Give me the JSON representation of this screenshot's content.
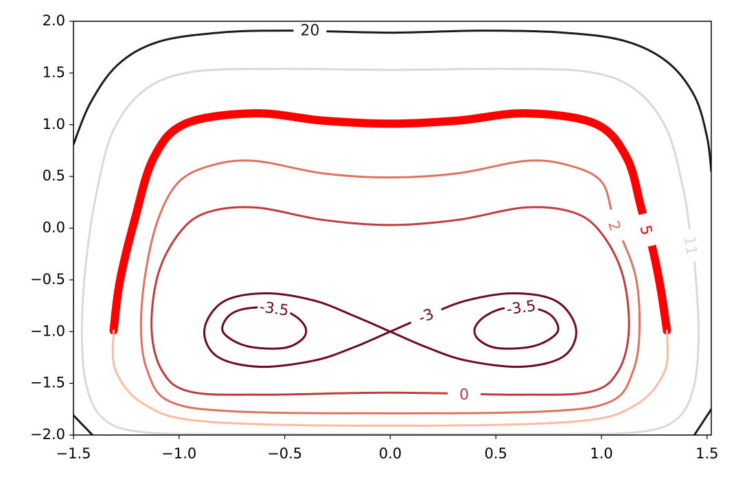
{
  "chart_data": {
    "type": "contour",
    "xlim": [
      -1.5,
      1.52
    ],
    "ylim": [
      -2,
      2
    ],
    "xticks": [
      {
        "value": -1.5,
        "label": "−1.5"
      },
      {
        "value": -1,
        "label": "−1.0"
      },
      {
        "value": -0.5,
        "label": "−0.5"
      },
      {
        "value": 0,
        "label": "0.0"
      },
      {
        "value": 0.5,
        "label": "0.5"
      },
      {
        "value": 1,
        "label": "1.0"
      },
      {
        "value": 1.5,
        "label": "1.5"
      }
    ],
    "yticks": [
      {
        "value": -2,
        "label": "−2.0"
      },
      {
        "value": -1.5,
        "label": "−1.5"
      },
      {
        "value": -1,
        "label": "−1.0"
      },
      {
        "value": -0.5,
        "label": "−0.5"
      },
      {
        "value": 0,
        "label": "0.0"
      },
      {
        "value": 0.5,
        "label": "0.5"
      },
      {
        "value": 1,
        "label": "1.0"
      },
      {
        "value": 1.5,
        "label": "1.5"
      },
      {
        "value": 2,
        "label": "2.0"
      }
    ],
    "contours": [
      {
        "level": 20,
        "color": "#1a1a1a",
        "paths": [
          {
            "closed": false,
            "x": [
              -1.5,
              -1.42,
              -1.29,
              -1.1,
              -0.81,
              -0.48,
              0,
              0.43,
              0.82,
              1.11,
              1.31,
              1.44,
              1.5,
              1.52
            ],
            "y": [
              0.81,
              1.21,
              1.58,
              1.8,
              1.89,
              1.91,
              1.89,
              1.91,
              1.89,
              1.81,
              1.61,
              1.28,
              0.88,
              0.55
            ]
          },
          {
            "closed": false,
            "x": [
              -1.5,
              -1.41
            ],
            "y": [
              -1.81,
              -2
            ]
          },
          {
            "closed": false,
            "x": [
              1.52,
              1.44
            ],
            "y": [
              -1.75,
              -2
            ]
          }
        ],
        "labels": [
          {
            "x": -0.38,
            "y": 1.91
          }
        ]
      },
      {
        "level": 11,
        "color": "#d9d9d9",
        "paths": [
          {
            "closed": true,
            "x": [
              -1.46,
              -1.44,
              -1.39,
              -1.31,
              -1.16,
              -0.94,
              -0.55,
              0,
              0.55,
              0.94,
              1.16,
              1.31,
              1.39,
              1.42,
              1.44,
              1.46,
              1.44,
              1.36,
              1.18,
              0.75,
              0,
              -0.75,
              -1.18,
              -1.36,
              -1.44
            ],
            "y": [
              -0.98,
              -0.32,
              0.35,
              0.95,
              1.34,
              1.51,
              1.54,
              1.53,
              1.54,
              1.51,
              1.34,
              0.95,
              0.35,
              -0.05,
              -0.32,
              -0.98,
              -1.51,
              -1.84,
              -1.97,
              -1.99,
              -1.99,
              -1.99,
              -1.97,
              -1.84,
              -1.51
            ]
          }
        ],
        "labels": [
          {
            "x": 1.42,
            "y": -0.17
          }
        ]
      },
      {
        "level": 5,
        "color": "#ff0000",
        "paths": [
          {
            "closed": false,
            "color": "#ff0000",
            "width": 12,
            "x": [
              -1.31,
              -1.28,
              -1.21,
              -1.12,
              -0.97,
              -0.64,
              -0.32,
              0,
              0.32,
              0.64,
              0.97,
              1.12,
              1.19,
              1.24,
              1.28,
              1.31
            ],
            "y": [
              -0.99,
              -0.51,
              0.08,
              0.68,
              1.01,
              1.11,
              1.04,
              1.01,
              1.04,
              1.11,
              1.01,
              0.68,
              0.18,
              -0.18,
              -0.58,
              -0.99
            ]
          },
          {
            "closed": false,
            "color": "#fcbba1",
            "width": 3,
            "x": [
              -1.31,
              -1.3,
              -1.16,
              -0.87,
              0,
              0.87,
              1.16,
              1.3,
              1.31
            ],
            "y": [
              -0.99,
              -1.38,
              -1.71,
              -1.87,
              -1.91,
              -1.87,
              -1.71,
              -1.38,
              -0.99
            ]
          }
        ],
        "labels": [
          {
            "x": 1.21,
            "y": -0.02
          }
        ]
      },
      {
        "level": 2,
        "color": "#de7260",
        "paths": [
          {
            "closed": true,
            "x": [
              -1.18,
              -1.16,
              -1.1,
              -1,
              -0.84,
              -0.64,
              -0.32,
              0,
              0.32,
              0.64,
              0.84,
              1,
              1.06,
              1.16,
              1.18,
              1.15,
              1.05,
              0.75,
              0,
              -0.75,
              -1.05,
              -1.15
            ],
            "y": [
              -0.98,
              -0.45,
              0.08,
              0.45,
              0.61,
              0.65,
              0.53,
              0.49,
              0.53,
              0.65,
              0.61,
              0.45,
              0.08,
              -0.45,
              -0.98,
              -1.38,
              -1.67,
              -1.77,
              -1.79,
              -1.77,
              -1.67,
              -1.38
            ]
          }
        ],
        "labels": [
          {
            "x": 1.06,
            "y": 0.02
          }
        ]
      },
      {
        "level": 0,
        "color": "#c13b3d",
        "paths": [
          {
            "closed": true,
            "x": [
              -1.13,
              -1.1,
              -1,
              -0.87,
              -0.64,
              -0.32,
              0,
              0.32,
              0.64,
              0.87,
              1,
              1.1,
              1.13,
              1.08,
              0.95,
              0.62,
              0,
              -0.62,
              -0.95,
              -1.08
            ],
            "y": [
              -0.98,
              -0.45,
              -0.05,
              0.15,
              0.2,
              0.08,
              0.03,
              0.08,
              0.2,
              0.15,
              -0.05,
              -0.45,
              -0.98,
              -1.38,
              -1.58,
              -1.61,
              -1.59,
              -1.61,
              -1.58,
              -1.38
            ]
          }
        ],
        "labels": [
          {
            "x": 0.35,
            "y": -1.61
          }
        ]
      },
      {
        "level": -3,
        "color": "#6b0a1f",
        "paths": [
          {
            "closed": true,
            "x": [
              0,
              0.17,
              0.36,
              0.59,
              0.79,
              0.88,
              0.82,
              0.62,
              0.36,
              0.17,
              0,
              -0.17,
              -0.36,
              -0.59,
              -0.79,
              -0.88,
              -0.82,
              -0.62,
              -0.36,
              -0.17
            ],
            "y": [
              -1,
              -0.85,
              -0.7,
              -0.63,
              -0.71,
              -0.98,
              -1.24,
              -1.34,
              -1.28,
              -1.15,
              -1,
              -0.85,
              -0.7,
              -0.63,
              -0.71,
              -0.98,
              -1.24,
              -1.34,
              -1.28,
              -1.15
            ]
          }
        ],
        "labels": [
          {
            "x": 0.17,
            "y": -0.85
          }
        ]
      },
      {
        "level": -3.5,
        "color": "#6b0a1f",
        "paths": [
          {
            "closed": true,
            "x": [
              -0.4,
              -0.42,
              -0.51,
              -0.68,
              -0.79,
              -0.77,
              -0.69,
              -0.55,
              -0.45
            ],
            "y": [
              -0.97,
              -1.08,
              -1.16,
              -1.14,
              -1.01,
              -0.86,
              -0.78,
              -0.77,
              -0.85
            ]
          },
          {
            "closed": true,
            "x": [
              0.4,
              0.42,
              0.51,
              0.68,
              0.79,
              0.77,
              0.69,
              0.55,
              0.45
            ],
            "y": [
              -0.97,
              -1.08,
              -1.16,
              -1.14,
              -1.01,
              -0.86,
              -0.78,
              -0.77,
              -0.85
            ]
          }
        ],
        "labels": [
          {
            "x": -0.55,
            "y": -0.78
          },
          {
            "x": 0.62,
            "y": -0.77
          }
        ]
      }
    ]
  }
}
